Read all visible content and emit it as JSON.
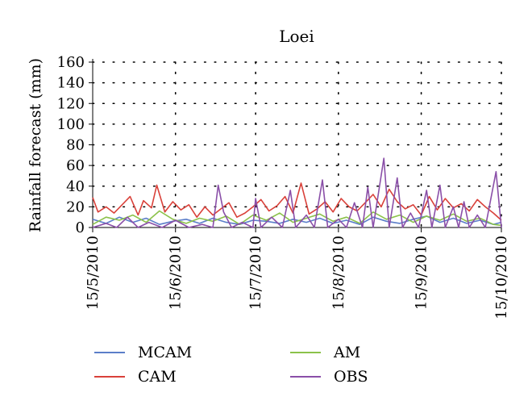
{
  "chart_data": {
    "type": "line",
    "title": "Loei",
    "xlabel": "",
    "ylabel": "Rainfall forecast (mm)",
    "ylim": [
      0,
      160
    ],
    "yticks": [
      0,
      20,
      40,
      60,
      80,
      100,
      120,
      140,
      160
    ],
    "xlim": [
      "2010-05-15",
      "2010-10-15"
    ],
    "xtick_labels": [
      "15/5/2010",
      "15/6/2010",
      "15/7/2010",
      "15/8/2010",
      "15/9/2010",
      "15/10/2010"
    ],
    "xtick_dates": [
      "2010-05-15",
      "2010-06-15",
      "2010-07-15",
      "2010-08-15",
      "2010-09-15",
      "2010-10-15"
    ],
    "grid": "dotted horizontal and vertical",
    "legend_placement": "bottom",
    "series": [
      {
        "name": "MCAM",
        "color": "#5b7ec9",
        "points": [
          [
            "2010-05-15",
            8
          ],
          [
            "2010-05-20",
            4
          ],
          [
            "2010-05-25",
            10
          ],
          [
            "2010-05-30",
            5
          ],
          [
            "2010-06-04",
            9
          ],
          [
            "2010-06-09",
            3
          ],
          [
            "2010-06-14",
            6
          ],
          [
            "2010-06-19",
            8
          ],
          [
            "2010-06-24",
            4
          ],
          [
            "2010-06-29",
            9
          ],
          [
            "2010-07-04",
            5
          ],
          [
            "2010-07-09",
            3
          ],
          [
            "2010-07-14",
            7
          ],
          [
            "2010-07-19",
            6
          ],
          [
            "2010-07-24",
            4
          ],
          [
            "2010-07-29",
            8
          ],
          [
            "2010-08-03",
            5
          ],
          [
            "2010-08-08",
            9
          ],
          [
            "2010-08-13",
            4
          ],
          [
            "2010-08-18",
            7
          ],
          [
            "2010-08-23",
            3
          ],
          [
            "2010-08-28",
            10
          ],
          [
            "2010-09-02",
            6
          ],
          [
            "2010-09-07",
            4
          ],
          [
            "2010-09-12",
            8
          ],
          [
            "2010-09-17",
            11
          ],
          [
            "2010-09-22",
            5
          ],
          [
            "2010-09-27",
            9
          ],
          [
            "2010-10-02",
            4
          ],
          [
            "2010-10-07",
            7
          ],
          [
            "2010-10-12",
            3
          ],
          [
            "2010-10-15",
            5
          ]
        ]
      },
      {
        "name": "CAM",
        "color": "#d9413a",
        "points": [
          [
            "2010-05-15",
            29
          ],
          [
            "2010-05-17",
            15
          ],
          [
            "2010-05-20",
            20
          ],
          [
            "2010-05-23",
            14
          ],
          [
            "2010-05-26",
            22
          ],
          [
            "2010-05-29",
            30
          ],
          [
            "2010-06-01",
            12
          ],
          [
            "2010-06-03",
            26
          ],
          [
            "2010-06-06",
            19
          ],
          [
            "2010-06-08",
            41
          ],
          [
            "2010-06-11",
            15
          ],
          [
            "2010-06-14",
            25
          ],
          [
            "2010-06-17",
            17
          ],
          [
            "2010-06-20",
            22
          ],
          [
            "2010-06-23",
            10
          ],
          [
            "2010-06-26",
            20
          ],
          [
            "2010-06-29",
            12
          ],
          [
            "2010-07-02",
            18
          ],
          [
            "2010-07-05",
            24
          ],
          [
            "2010-07-08",
            10
          ],
          [
            "2010-07-11",
            14
          ],
          [
            "2010-07-14",
            20
          ],
          [
            "2010-07-17",
            27
          ],
          [
            "2010-07-20",
            16
          ],
          [
            "2010-07-23",
            21
          ],
          [
            "2010-07-26",
            30
          ],
          [
            "2010-07-29",
            14
          ],
          [
            "2010-08-01",
            43
          ],
          [
            "2010-08-04",
            13
          ],
          [
            "2010-08-07",
            18
          ],
          [
            "2010-08-10",
            25
          ],
          [
            "2010-08-13",
            15
          ],
          [
            "2010-08-16",
            28
          ],
          [
            "2010-08-19",
            20
          ],
          [
            "2010-08-22",
            16
          ],
          [
            "2010-08-25",
            24
          ],
          [
            "2010-08-28",
            32
          ],
          [
            "2010-08-31",
            20
          ],
          [
            "2010-09-03",
            37
          ],
          [
            "2010-09-06",
            25
          ],
          [
            "2010-09-09",
            18
          ],
          [
            "2010-09-12",
            22
          ],
          [
            "2010-09-15",
            12
          ],
          [
            "2010-09-18",
            30
          ],
          [
            "2010-09-21",
            17
          ],
          [
            "2010-09-24",
            28
          ],
          [
            "2010-09-27",
            19
          ],
          [
            "2010-09-30",
            23
          ],
          [
            "2010-10-03",
            16
          ],
          [
            "2010-10-06",
            27
          ],
          [
            "2010-10-09",
            20
          ],
          [
            "2010-10-12",
            14
          ],
          [
            "2010-10-15",
            7
          ]
        ]
      },
      {
        "name": "AM",
        "color": "#8bc24a",
        "points": [
          [
            "2010-05-15",
            3
          ],
          [
            "2010-05-20",
            10
          ],
          [
            "2010-05-25",
            7
          ],
          [
            "2010-05-30",
            12
          ],
          [
            "2010-06-04",
            5
          ],
          [
            "2010-06-09",
            16
          ],
          [
            "2010-06-14",
            8
          ],
          [
            "2010-06-19",
            4
          ],
          [
            "2010-06-24",
            9
          ],
          [
            "2010-06-29",
            6
          ],
          [
            "2010-07-04",
            11
          ],
          [
            "2010-07-09",
            3
          ],
          [
            "2010-07-14",
            12
          ],
          [
            "2010-07-19",
            7
          ],
          [
            "2010-07-24",
            14
          ],
          [
            "2010-07-29",
            5
          ],
          [
            "2010-08-03",
            9
          ],
          [
            "2010-08-08",
            13
          ],
          [
            "2010-08-13",
            6
          ],
          [
            "2010-08-18",
            10
          ],
          [
            "2010-08-23",
            4
          ],
          [
            "2010-08-28",
            15
          ],
          [
            "2010-09-02",
            8
          ],
          [
            "2010-09-07",
            12
          ],
          [
            "2010-09-12",
            5
          ],
          [
            "2010-09-17",
            11
          ],
          [
            "2010-09-22",
            7
          ],
          [
            "2010-09-27",
            13
          ],
          [
            "2010-10-02",
            6
          ],
          [
            "2010-10-07",
            9
          ],
          [
            "2010-10-12",
            3
          ],
          [
            "2010-10-15",
            2
          ]
        ]
      },
      {
        "name": "OBS",
        "color": "#8a4fa8",
        "points": [
          [
            "2010-05-15",
            0
          ],
          [
            "2010-05-20",
            4
          ],
          [
            "2010-05-24",
            0
          ],
          [
            "2010-05-28",
            10
          ],
          [
            "2010-06-01",
            0
          ],
          [
            "2010-06-05",
            5
          ],
          [
            "2010-06-10",
            0
          ],
          [
            "2010-06-15",
            7
          ],
          [
            "2010-06-20",
            0
          ],
          [
            "2010-06-25",
            3
          ],
          [
            "2010-06-29",
            0
          ],
          [
            "2010-07-01",
            41
          ],
          [
            "2010-07-03",
            15
          ],
          [
            "2010-07-06",
            0
          ],
          [
            "2010-07-10",
            5
          ],
          [
            "2010-07-14",
            0
          ],
          [
            "2010-07-15",
            28
          ],
          [
            "2010-07-17",
            0
          ],
          [
            "2010-07-21",
            10
          ],
          [
            "2010-07-25",
            0
          ],
          [
            "2010-07-28",
            36
          ],
          [
            "2010-07-30",
            0
          ],
          [
            "2010-08-03",
            12
          ],
          [
            "2010-08-06",
            0
          ],
          [
            "2010-08-09",
            46
          ],
          [
            "2010-08-11",
            0
          ],
          [
            "2010-08-15",
            8
          ],
          [
            "2010-08-18",
            0
          ],
          [
            "2010-08-21",
            24
          ],
          [
            "2010-08-24",
            0
          ],
          [
            "2010-08-26",
            39
          ],
          [
            "2010-08-28",
            0
          ],
          [
            "2010-09-01",
            67
          ],
          [
            "2010-09-03",
            0
          ],
          [
            "2010-09-06",
            48
          ],
          [
            "2010-09-08",
            0
          ],
          [
            "2010-09-11",
            14
          ],
          [
            "2010-09-14",
            0
          ],
          [
            "2010-09-17",
            36
          ],
          [
            "2010-09-19",
            0
          ],
          [
            "2010-09-22",
            41
          ],
          [
            "2010-09-24",
            0
          ],
          [
            "2010-09-27",
            20
          ],
          [
            "2010-09-29",
            0
          ],
          [
            "2010-10-01",
            25
          ],
          [
            "2010-10-03",
            0
          ],
          [
            "2010-10-06",
            12
          ],
          [
            "2010-10-09",
            0
          ],
          [
            "2010-10-13",
            54
          ],
          [
            "2010-10-15",
            0
          ]
        ]
      }
    ]
  }
}
